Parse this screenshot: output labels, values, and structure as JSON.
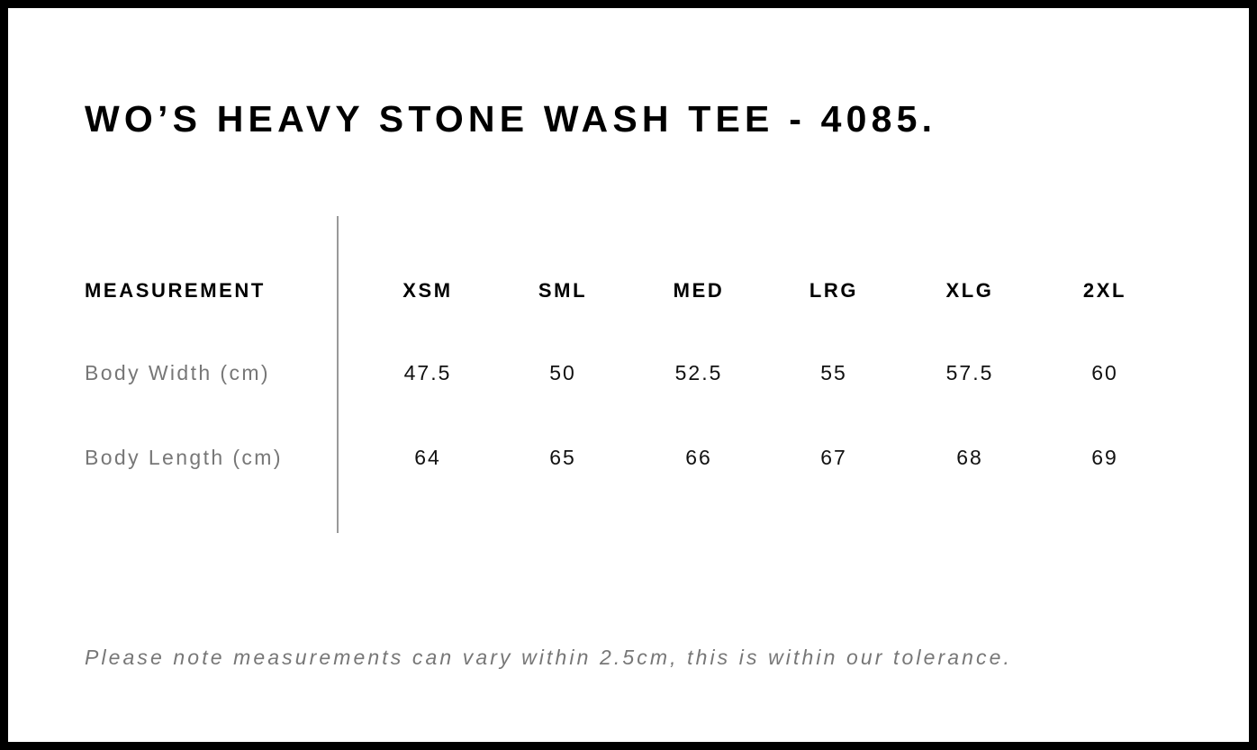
{
  "title": "WO’S HEAVY STONE WASH TEE - 4085.",
  "table": {
    "header_label": "MEASUREMENT",
    "sizes": [
      "XSM",
      "SML",
      "MED",
      "LRG",
      "XLG",
      "2XL"
    ],
    "rows": [
      {
        "label": "Body Width (cm)",
        "values": [
          "47.5",
          "50",
          "52.5",
          "55",
          "57.5",
          "60"
        ]
      },
      {
        "label": "Body Length (cm)",
        "values": [
          "64",
          "65",
          "66",
          "67",
          "68",
          "69"
        ]
      }
    ]
  },
  "note": "Please note measurements can vary within 2.5cm, this is within our tolerance."
}
